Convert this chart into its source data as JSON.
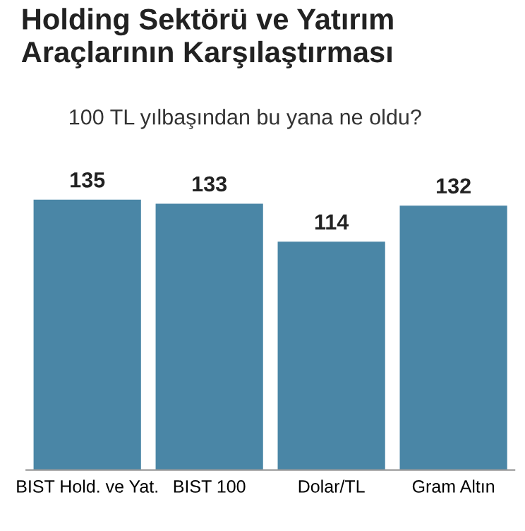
{
  "chart_data": {
    "type": "bar",
    "title": "Holding Sektörü ve Yatırım\nAraçlarının Karşılaştırması",
    "subtitle": "100 TL yılbaşından bu yana ne oldu?",
    "categories": [
      "BIST Hold. ve Yat.",
      "BIST 100",
      "Dolar/TL",
      "Gram Altın"
    ],
    "values": [
      135,
      133,
      114,
      132
    ],
    "color": "#4a86a6",
    "data_labels": true,
    "grid": false,
    "legend": false
  }
}
